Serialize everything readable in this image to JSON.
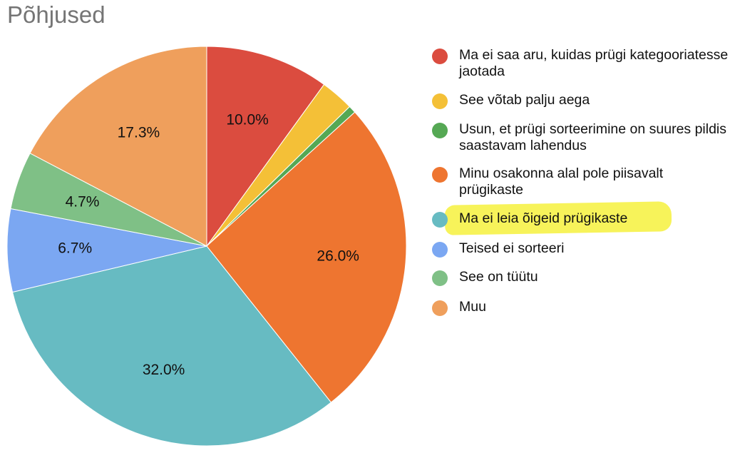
{
  "chart_data": {
    "type": "pie",
    "title": "Põhjused",
    "legend_position": "right",
    "start_angle_deg": 0,
    "direction": "clockwise",
    "highlighted_legend_item": "Ma ei leia õigeid prügikaste",
    "highlight_color": "#f7f35a",
    "slices": [
      {
        "label": "Ma ei saa aru, kuidas prügi kategooriatesse jaotada",
        "value": 10.0,
        "display": "10.0%",
        "color": "#db4c3f"
      },
      {
        "label": "See võtab palju aega",
        "value": 2.7,
        "display": "",
        "color": "#f4c037"
      },
      {
        "label": "Usun, et prügi sorteerimine on suures pildis saastavam lahendus",
        "value": 0.6,
        "display": "",
        "color": "#55a854"
      },
      {
        "label": "Minu osakonna alal pole piisavalt prügikaste",
        "value": 26.0,
        "display": "26.0%",
        "color": "#ee7530"
      },
      {
        "label": "Ma ei leia õigeid prügikaste",
        "value": 32.0,
        "display": "32.0%",
        "color": "#67bbc2"
      },
      {
        "label": "Teised ei sorteeri",
        "value": 6.7,
        "display": "6.7%",
        "color": "#7ba7f2"
      },
      {
        "label": "See on tüütu",
        "value": 4.7,
        "display": "4.7%",
        "color": "#7fc086"
      },
      {
        "label": "Muu",
        "value": 17.3,
        "display": "17.3%",
        "color": "#ef9f5c"
      }
    ]
  }
}
